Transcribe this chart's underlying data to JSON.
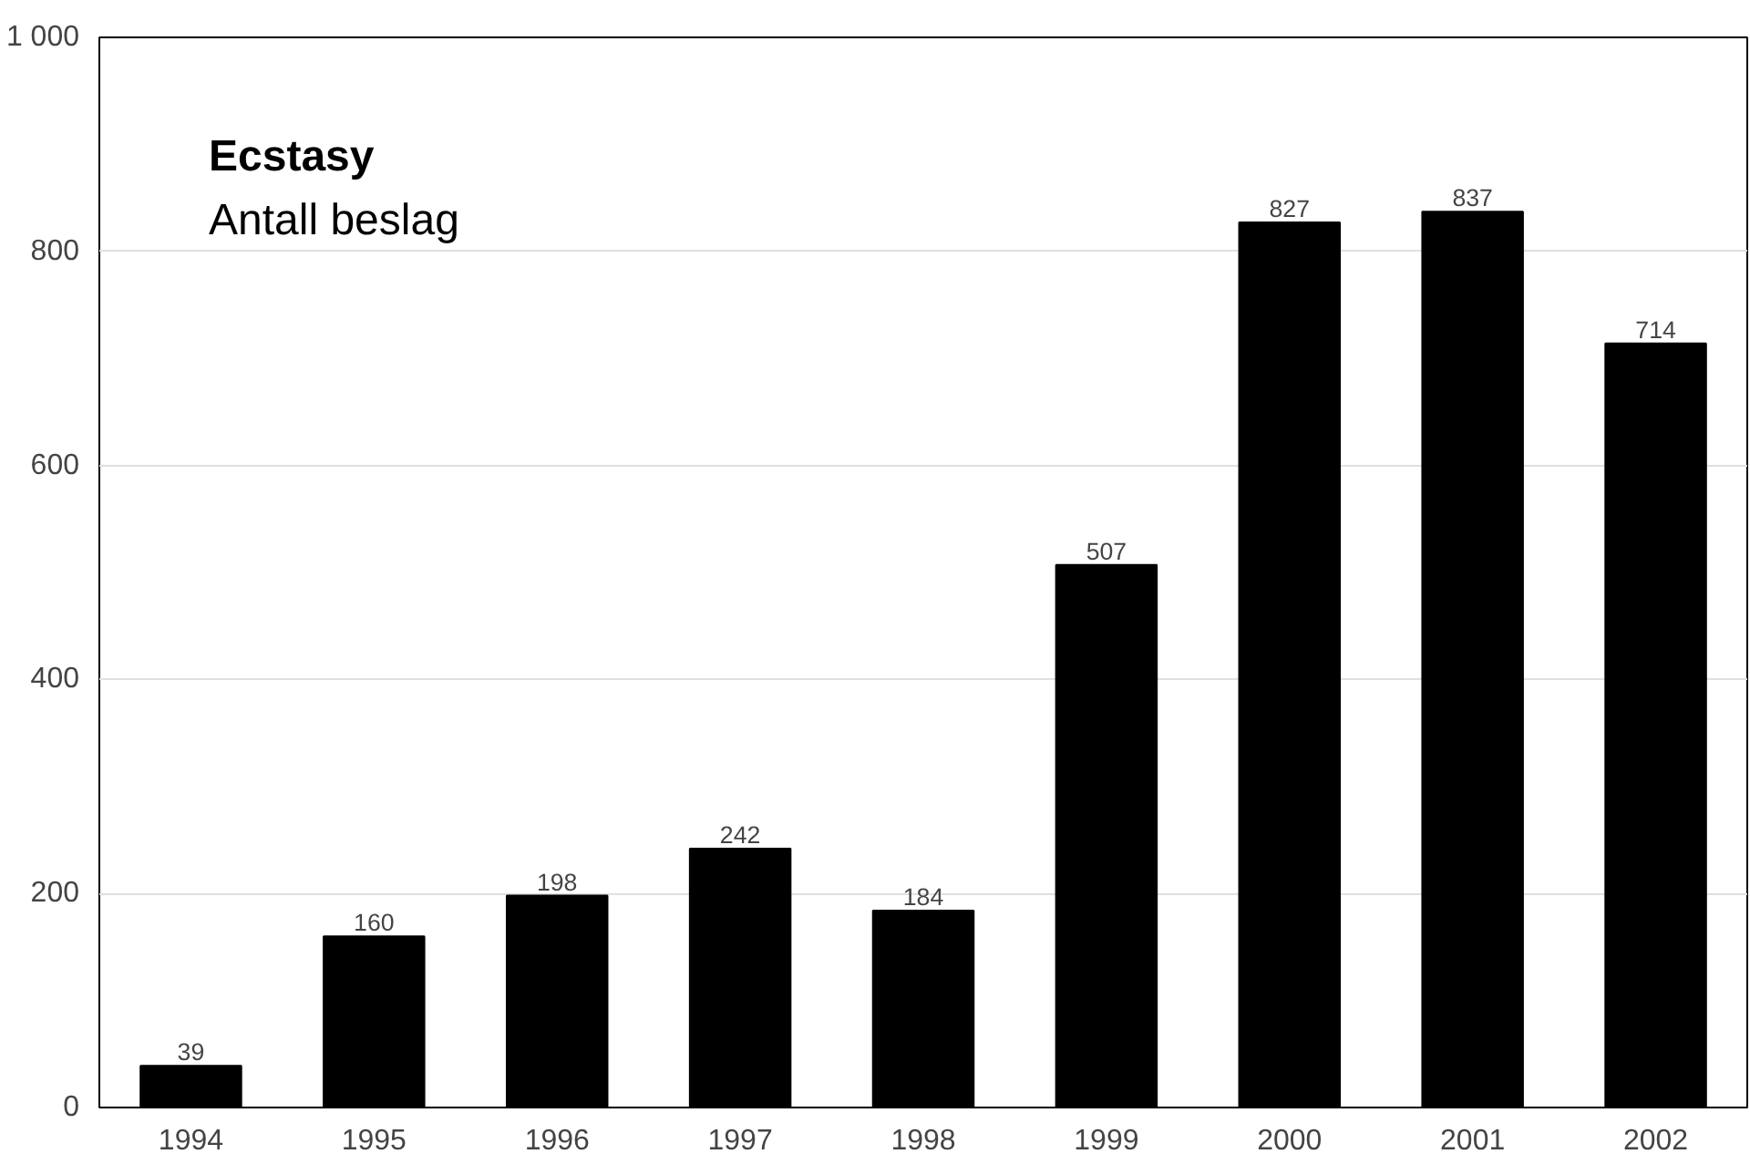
{
  "chart_data": {
    "type": "bar",
    "title": "Ecstasy",
    "subtitle": "Antall beslag",
    "categories": [
      "1994",
      "1995",
      "1996",
      "1997",
      "1998",
      "1999",
      "2000",
      "2001",
      "2002"
    ],
    "values": [
      39,
      160,
      198,
      242,
      184,
      507,
      827,
      837,
      714
    ],
    "color": "#000000",
    "data_labels": true,
    "ylim": [
      0,
      1000
    ],
    "yticks": [
      0,
      200,
      400,
      600,
      800,
      {
        "value": 1000,
        "label": "1 000"
      }
    ],
    "grid": "y"
  }
}
